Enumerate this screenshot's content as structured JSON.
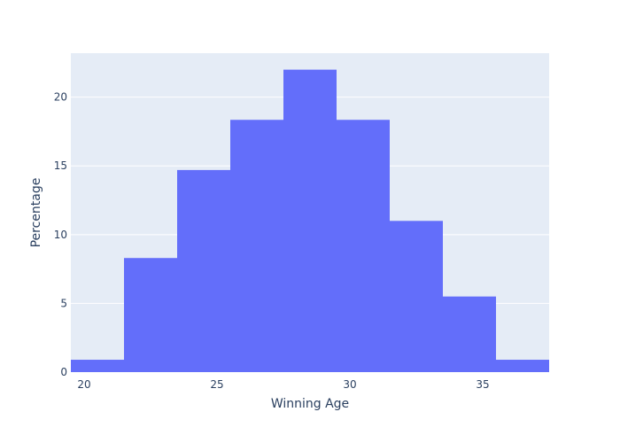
{
  "chart_data": {
    "type": "bar",
    "title": "",
    "xlabel": "Winning Age",
    "ylabel": "Percentage",
    "bins": [
      {
        "start": 19.5,
        "end": 21.5,
        "value": 0.9
      },
      {
        "start": 21.5,
        "end": 23.5,
        "value": 8.3
      },
      {
        "start": 23.5,
        "end": 25.5,
        "value": 14.7
      },
      {
        "start": 25.5,
        "end": 27.5,
        "value": 18.35
      },
      {
        "start": 27.5,
        "end": 29.5,
        "value": 22.0
      },
      {
        "start": 29.5,
        "end": 31.5,
        "value": 18.35
      },
      {
        "start": 31.5,
        "end": 33.5,
        "value": 11.0
      },
      {
        "start": 33.5,
        "end": 35.5,
        "value": 5.5
      },
      {
        "start": 35.5,
        "end": 37.5,
        "value": 0.9
      }
    ],
    "xlim": [
      19.5,
      37.5
    ],
    "ylim": [
      0,
      23.2
    ],
    "xticks": [
      20,
      25,
      30,
      35
    ],
    "yticks": [
      0,
      5,
      10,
      15,
      20
    ],
    "grid": true,
    "bar_color": "#636efa",
    "plot_background": "#e5ecf6",
    "grid_color": "#ffffff",
    "text_color": "#2a3f5f"
  }
}
